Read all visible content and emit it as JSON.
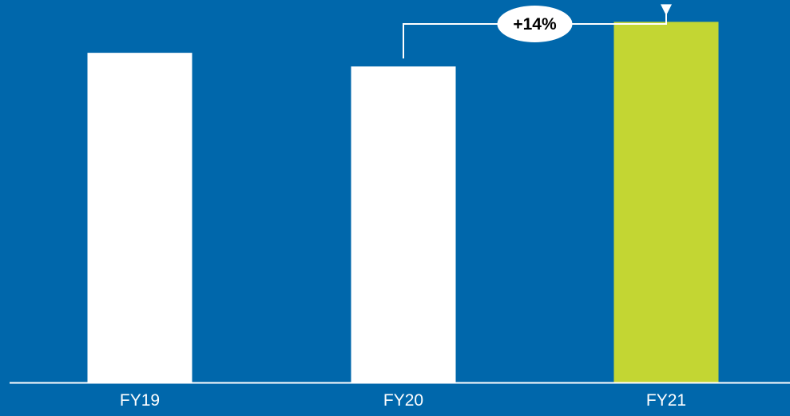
{
  "chart_data": {
    "type": "bar",
    "categories": [
      "FY19",
      "FY20",
      "FY21"
    ],
    "values": [
      362,
      347,
      396
    ],
    "ylim": [
      0,
      420
    ],
    "grid": false,
    "legend": "none",
    "annotations": [
      {
        "type": "growth-arrow",
        "from": "FY20",
        "to": "FY21",
        "label": "+14%"
      }
    ]
  },
  "colors": {
    "background": "#0067ab",
    "bars": [
      "#ffffff",
      "#ffffff",
      "#c3d633"
    ],
    "axis": "#ffffff",
    "annotation_line": "#ffffff",
    "annotation_badge": "#ffffff"
  }
}
